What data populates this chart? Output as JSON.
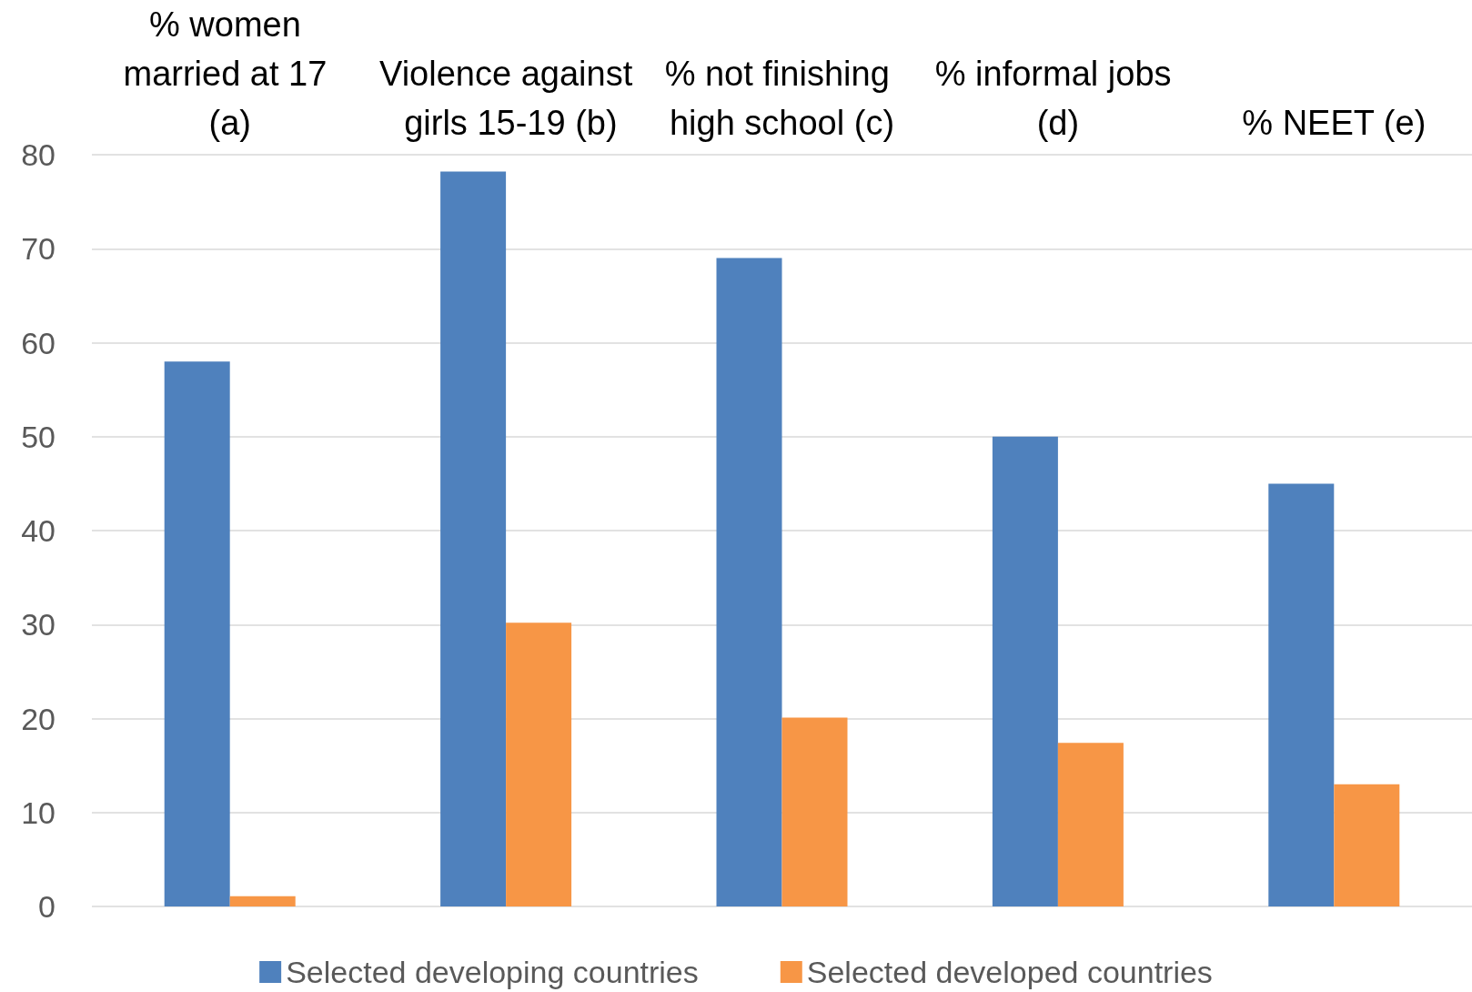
{
  "chart_data": {
    "type": "bar",
    "categories": [
      "% women married at 17 (a)",
      "Violence against girls 15-19 (b)",
      "% not finishing high school (c)",
      "% informal jobs (d)",
      "% NEET (e)"
    ],
    "series": [
      {
        "name": "Selected developing countries",
        "color": "#4f81bd",
        "values": [
          58,
          78.2,
          69,
          50,
          45
        ]
      },
      {
        "name": "Selected developed countries",
        "color": "#f79646",
        "values": [
          1.1,
          30.2,
          20.1,
          17.4,
          13
        ]
      }
    ],
    "ylim": [
      0,
      80
    ],
    "yticks": [
      0,
      10,
      20,
      30,
      40,
      50,
      60,
      70,
      80
    ],
    "grid": "y",
    "legend": "bottom"
  }
}
